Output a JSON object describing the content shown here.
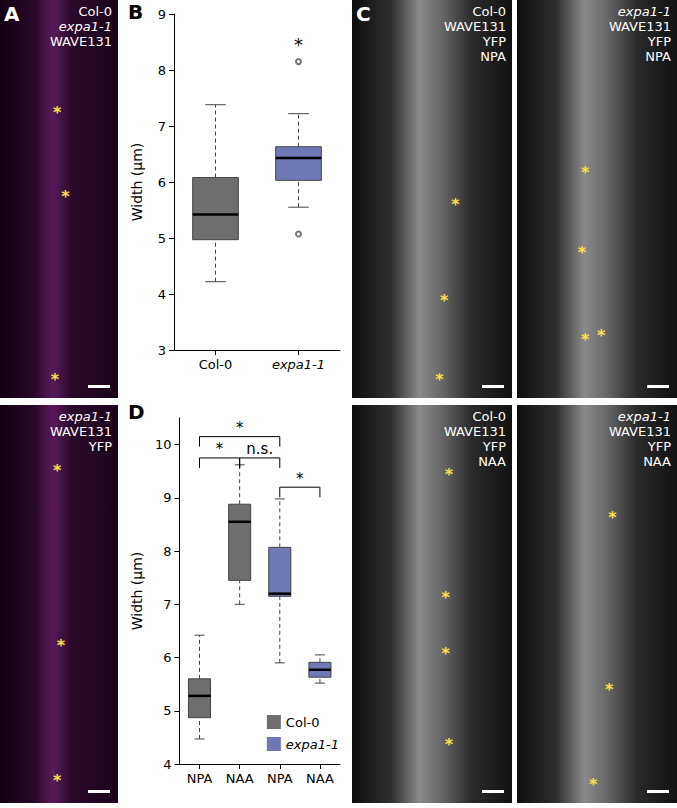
{
  "panel_letters": [
    "A",
    "B",
    "C",
    "D"
  ],
  "image_panels": [
    {
      "panel": "A",
      "labels": [
        "Col-0",
        "expa1-1",
        "WAVE131"
      ],
      "markers": [
        "*",
        "*",
        "*"
      ]
    },
    {
      "panel": "A",
      "labels": [
        "expa1-1",
        "WAVE131",
        "YFP"
      ],
      "markers": [
        "*",
        "*",
        "*"
      ]
    },
    {
      "panel": "C",
      "labels": [
        "Col-0",
        "WAVE131",
        "YFP",
        "NPA"
      ],
      "markers": [
        "*",
        "*",
        "*"
      ]
    },
    {
      "panel": "C",
      "labels": [
        "expa1-1",
        "WAVE131",
        "YFP",
        "NPA"
      ],
      "markers": [
        "*",
        "*",
        "*",
        "*"
      ]
    },
    {
      "panel": "C",
      "labels": [
        "Col-0",
        "WAVE131",
        "YFP",
        "NAA"
      ],
      "markers": [
        "*",
        "*",
        "*",
        "*"
      ]
    },
    {
      "panel": "C",
      "labels": [
        "expa1-1",
        "WAVE131",
        "YFP",
        "NAA"
      ],
      "markers": [
        "*",
        "*",
        "*"
      ]
    }
  ],
  "chart_data": [
    {
      "type": "boxplot",
      "categories": [
        "Col-0",
        "expa1-1"
      ],
      "values": [
        [
          4.22,
          4.97,
          5.42,
          6.08,
          7.38
        ],
        [
          5.55,
          6.03,
          6.43,
          6.63,
          7.22
        ]
      ],
      "outliers": [
        [],
        [
          8.15,
          5.07
        ]
      ],
      "colors": [
        "#6e6e6e",
        "#6f79b6"
      ],
      "y_label": "Width (µm)",
      "ylim": [
        3,
        9
      ],
      "yticks": [
        3,
        4,
        5,
        6,
        7,
        8,
        9
      ],
      "annotations": [
        {
          "category": 1,
          "y": 8.45,
          "label": "*"
        }
      ]
    },
    {
      "type": "boxplot",
      "categories": [
        "NPA",
        "NAA",
        "NPA",
        "NAA"
      ],
      "series": [
        {
          "name": "Col-0",
          "color": "#6e6e6e",
          "values": [
            [
              4.47,
              4.87,
              5.28,
              5.6,
              6.42
            ],
            [
              7.0,
              7.45,
              8.55,
              8.88,
              9.62
            ],
            null,
            null
          ]
        },
        {
          "name": "expa1-1",
          "color": "#6f79b6",
          "values": [
            null,
            null,
            [
              5.9,
              7.15,
              7.2,
              8.07,
              8.98
            ],
            [
              5.52,
              5.63,
              5.77,
              5.91,
              6.05
            ]
          ]
        }
      ],
      "y_label": "Width (µm)",
      "ylim": [
        4,
        10.5
      ],
      "yticks": [
        4,
        5,
        6,
        7,
        8,
        9,
        10
      ],
      "legend": "bottom-right",
      "brackets": [
        {
          "from": 0,
          "to": 1,
          "y": 9.75,
          "label": "*"
        },
        {
          "from": 0,
          "to": 2,
          "y": 10.15,
          "label": "*"
        },
        {
          "from": 1,
          "to": 2,
          "y": 9.75,
          "label": "n.s."
        },
        {
          "from": 2,
          "to": 3,
          "y": 9.2,
          "label": "*"
        }
      ]
    }
  ]
}
